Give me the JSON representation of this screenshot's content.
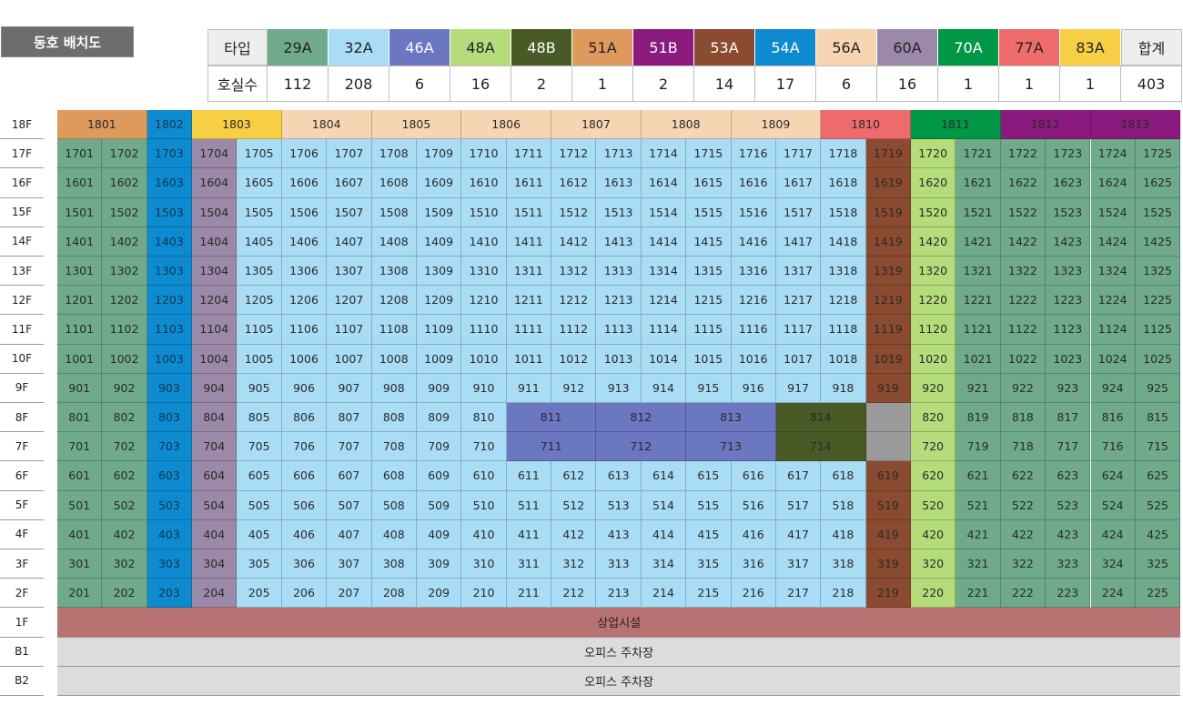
{
  "title": "동호 배치도",
  "legend": {
    "header_label": "타입",
    "count_label": "호실수",
    "types": [
      {
        "name": "29A",
        "count": "112",
        "color": "#6faa8b"
      },
      {
        "name": "32A",
        "count": "208",
        "color": "#a9ddf5"
      },
      {
        "name": "46A",
        "count": "6",
        "color": "#6b77c1"
      },
      {
        "name": "48A",
        "count": "16",
        "color": "#b5dc7a"
      },
      {
        "name": "48B",
        "count": "2",
        "color": "#4a5a26"
      },
      {
        "name": "51A",
        "count": "1",
        "color": "#de9a5c"
      },
      {
        "name": "51B",
        "count": "2",
        "color": "#8a1a7d"
      },
      {
        "name": "53A",
        "count": "14",
        "color": "#8a4b30"
      },
      {
        "name": "54A",
        "count": "17",
        "color": "#0e8bd0"
      },
      {
        "name": "56A",
        "count": "6",
        "color": "#f6d5b2"
      },
      {
        "name": "60A",
        "count": "16",
        "color": "#9c88a8"
      },
      {
        "name": "70A",
        "count": "1",
        "color": "#009846"
      },
      {
        "name": "77A",
        "count": "1",
        "color": "#ef6b6b"
      },
      {
        "name": "83A",
        "count": "1",
        "color": "#f6cf45"
      }
    ],
    "total_label": "합계",
    "total_count": "403",
    "total_color": "#eeeeee"
  },
  "floors": [
    "18F",
    "17F",
    "16F",
    "15F",
    "14F",
    "13F",
    "12F",
    "11F",
    "10F",
    "9F",
    "8F",
    "7F",
    "6F",
    "5F",
    "4F",
    "3F",
    "2F",
    "1F",
    "B1",
    "B2"
  ],
  "floor18": [
    {
      "label": "1801",
      "type": "51A"
    },
    {
      "label": "1802",
      "type": "54A"
    },
    {
      "label": "1803",
      "type": "83A"
    },
    {
      "label": "1804",
      "type": "56A"
    },
    {
      "label": "1805",
      "type": "56A"
    },
    {
      "label": "1806",
      "type": "56A"
    },
    {
      "label": "1807",
      "type": "56A"
    },
    {
      "label": "1808",
      "type": "56A"
    },
    {
      "label": "1809",
      "type": "56A"
    },
    {
      "label": "1810",
      "type": "77A"
    },
    {
      "label": "1811",
      "type": "70A"
    },
    {
      "label": "1812",
      "type": "51B"
    },
    {
      "label": "1813",
      "type": "51B"
    }
  ],
  "floor8": [
    "801",
    "802",
    "803",
    "804",
    "805",
    "806",
    "807",
    "808",
    "809",
    "810",
    "811",
    "812",
    "813",
    "814",
    "",
    "820",
    "819",
    "818",
    "817",
    "816",
    "815"
  ],
  "floor7": [
    "701",
    "702",
    "703",
    "704",
    "705",
    "706",
    "707",
    "708",
    "709",
    "710",
    "711",
    "712",
    "713",
    "714",
    "",
    "720",
    "719",
    "718",
    "717",
    "716",
    "715"
  ],
  "ground_floor_label": "상업시설",
  "basement1_label": "오피스 주차장",
  "basement2_label": "오피스 주차장",
  "colors": {
    "empty_unit": "#9b9b9b",
    "commercial": "#b87272",
    "parking": "#dcdcdc"
  }
}
